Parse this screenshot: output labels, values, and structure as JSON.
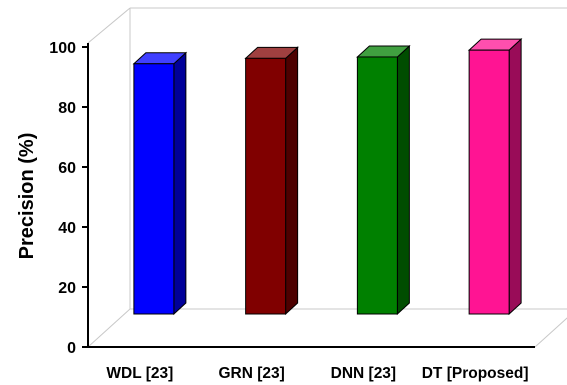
{
  "chart_data": {
    "type": "bar",
    "style": "3d",
    "categories": [
      "WDL [23]",
      "GRN [23]",
      "DNN [23]",
      "DT [Proposed]"
    ],
    "values": [
      92,
      94,
      94.5,
      97
    ],
    "colors": [
      "#0000ff",
      "#800000",
      "#008000",
      "#ff1493"
    ],
    "title": "",
    "xlabel": "",
    "ylabel": "Precision (%)",
    "ylim": [
      0,
      100
    ],
    "yticks": [
      0,
      20,
      40,
      60,
      80,
      100
    ],
    "grid": false,
    "legend": "none"
  }
}
